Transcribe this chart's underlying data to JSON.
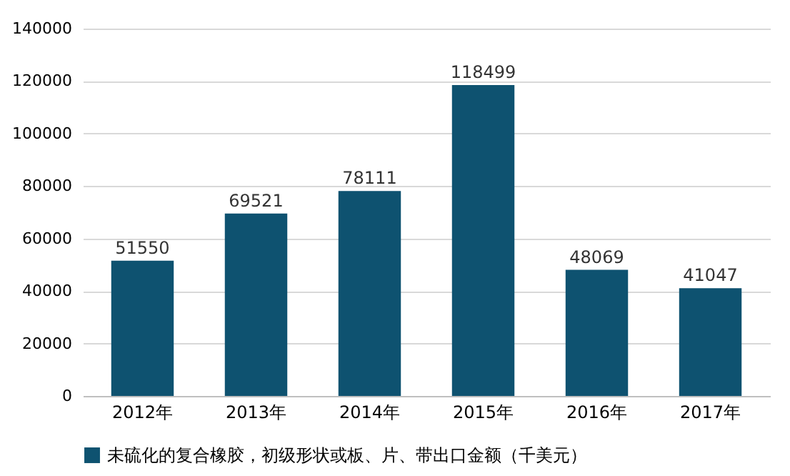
{
  "chart_data": {
    "type": "bar",
    "categories": [
      "2012年",
      "2013年",
      "2014年",
      "2015年",
      "2016年",
      "2017年"
    ],
    "series": [
      {
        "name": "未硫化的复合橡胶，初级形状或板、片、带出口金额（千美元）",
        "color": "#0e5270",
        "values": [
          51550,
          69521,
          78111,
          118499,
          48069,
          41047
        ]
      }
    ],
    "ylim": [
      0,
      140000
    ],
    "yticks": [
      0,
      20000,
      40000,
      60000,
      80000,
      100000,
      120000,
      140000
    ],
    "grid": "y",
    "legend": "bottom",
    "data_labels": true
  }
}
